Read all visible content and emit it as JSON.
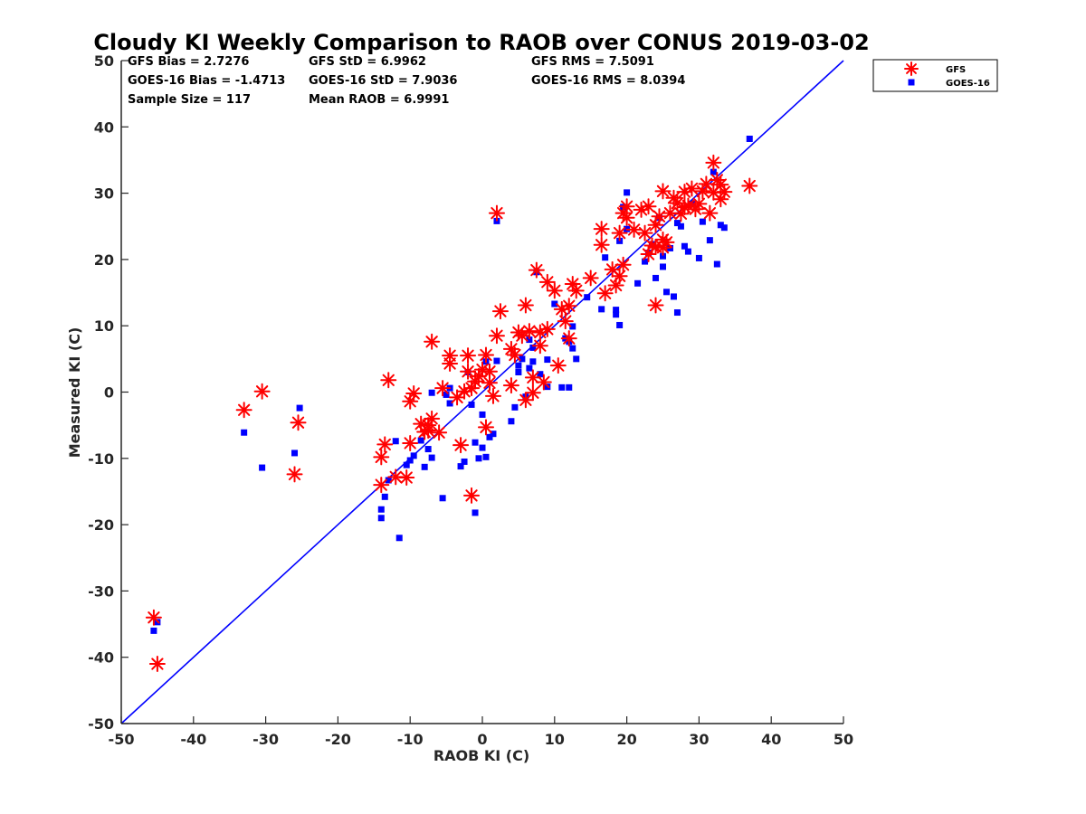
{
  "chart_data": {
    "type": "scatter",
    "title": "Cloudy KI Weekly Comparison to RAOB over CONUS 2019-03-02",
    "xlabel": "RAOB KI (C)",
    "ylabel": "Measured KI (C)",
    "xlim": [
      -50,
      50
    ],
    "ylim": [
      -50,
      50
    ],
    "xticks": [
      -50,
      -40,
      -30,
      -20,
      -10,
      0,
      10,
      20,
      30,
      40,
      50
    ],
    "yticks": [
      -50,
      -40,
      -30,
      -20,
      -10,
      0,
      10,
      20,
      30,
      40,
      50
    ],
    "grid": false,
    "legend_position": "top-right outside",
    "reference_line": {
      "name": "1:1 line",
      "from": [
        -50,
        -50
      ],
      "to": [
        50,
        50
      ],
      "color": "#0000ff"
    },
    "stats": [
      [
        "GFS Bias = 2.7276",
        "GFS StD = 6.9962",
        "GFS RMS = 7.5091"
      ],
      [
        "GOES-16 Bias = -1.4713",
        "GOES-16 StD = 7.9036",
        "GOES-16 RMS = 8.0394"
      ],
      [
        "Sample Size = 117",
        "Mean RAOB = 6.9991",
        ""
      ]
    ],
    "series": [
      {
        "name": "GFS",
        "marker": "asterisk",
        "color": "#ff0000",
        "x": [
          -45.5,
          -45,
          -33,
          -30.5,
          -26,
          -25.5,
          -14,
          -14,
          -13.5,
          -13,
          -12,
          -10.5,
          -10,
          -10,
          -9.5,
          -8.5,
          -8,
          -7.5,
          -7.5,
          -7,
          -7,
          -6,
          -5.5,
          -4.5,
          -4.5,
          -3.5,
          -3,
          -2.5,
          -2,
          -2,
          -1.5,
          -1.5,
          -1,
          -0.5,
          0,
          0.5,
          0.5,
          1,
          1,
          1.5,
          2,
          2,
          2.5,
          4,
          4,
          4.5,
          5,
          5.5,
          6,
          6,
          6.5,
          7,
          7,
          7.5,
          8,
          8,
          8.5,
          9,
          9,
          10,
          10.5,
          11,
          11.5,
          12,
          12,
          12.5,
          13,
          15,
          16.5,
          16.5,
          17,
          18,
          18.5,
          19,
          19,
          19.5,
          19.5,
          20,
          20,
          21,
          22,
          22.5,
          23,
          23,
          23.5,
          24,
          24,
          24,
          24.5,
          25,
          25,
          25,
          25.5,
          26,
          26.5,
          27,
          27.5,
          28,
          28,
          28.5,
          29,
          29.5,
          30,
          30.5,
          31,
          31.5,
          32,
          32,
          32.5,
          33,
          33,
          33.5,
          37
        ],
        "y": [
          -34,
          -41,
          -2.7,
          0.1,
          -12.4,
          -4.6,
          -9.8,
          -14,
          -7.9,
          1.8,
          -12.8,
          -12.9,
          -7.7,
          -1.4,
          -0.2,
          -4.8,
          -6,
          -5,
          -5.8,
          7.6,
          -4,
          -6.1,
          0.6,
          5.5,
          4.3,
          -0.8,
          -8,
          0.1,
          5.5,
          3.1,
          0.6,
          -15.6,
          1.6,
          2.4,
          3.4,
          5.6,
          -5.3,
          3.1,
          1.4,
          -0.6,
          27,
          8.5,
          12.2,
          6.5,
          1,
          5.6,
          9,
          8.5,
          -1.2,
          13.1,
          9.2,
          2.2,
          -0.1,
          18.4,
          7,
          9,
          1.5,
          16.6,
          9.5,
          15.3,
          4,
          12.5,
          10.7,
          8.1,
          13,
          16.3,
          15.3,
          17.2,
          22.2,
          24.6,
          14.9,
          18.5,
          16.1,
          17.5,
          24,
          19.2,
          27,
          28,
          26.3,
          24.5,
          27.5,
          24,
          28,
          20.8,
          22.1,
          13.1,
          21.9,
          25.2,
          26.5,
          23,
          30.3,
          21.8,
          22.6,
          27,
          29.3,
          28.5,
          26.9,
          30.2,
          27.9,
          28.1,
          30.7,
          27.6,
          28.4,
          30.3,
          31.4,
          27,
          34.6,
          30.1,
          32,
          29.1,
          31.3,
          30.2,
          31.1
        ]
      },
      {
        "name": "GOES-16",
        "marker": "square",
        "color": "#0000ff",
        "x": [
          -45.5,
          -45,
          -33,
          -30.5,
          -26,
          -25.3,
          -14,
          -14,
          -13.5,
          -13,
          -12,
          -11.5,
          -10.5,
          -10,
          -9.5,
          -8.5,
          -8,
          -7.5,
          -7,
          -7,
          -5.5,
          -5,
          -4.5,
          -4.5,
          -3,
          -2.5,
          -2,
          -1.5,
          -1,
          -1,
          -0.5,
          0,
          0,
          0.5,
          0.5,
          1,
          1.5,
          2,
          2,
          4,
          4.5,
          5,
          5,
          5.5,
          6,
          6.5,
          6.5,
          7,
          7,
          7.5,
          8,
          9,
          9,
          10,
          11,
          11.5,
          12,
          12,
          12.5,
          12.5,
          13,
          14.5,
          16.5,
          17,
          18.5,
          18.5,
          19,
          19,
          19.5,
          20,
          20,
          21.5,
          22.5,
          23,
          23.5,
          24,
          24.5,
          25,
          25,
          25.5,
          26,
          26.5,
          27,
          27,
          27.5,
          28,
          28.5,
          29,
          30,
          30.5,
          31.5,
          32,
          32.5,
          33,
          33.5,
          37
        ],
        "y": [
          -36,
          -34.7,
          -6.1,
          -11.4,
          -9.2,
          -2.4,
          -17.7,
          -19,
          -15.8,
          -13.3,
          -7.4,
          -22,
          -11,
          -10.3,
          -9.6,
          -7.3,
          -11.3,
          -8.6,
          -0.1,
          -9.9,
          -16,
          -0.4,
          -1.7,
          0.6,
          -11.2,
          -10.5,
          3,
          -1.9,
          -18.2,
          -7.6,
          -10,
          -8.4,
          -3.4,
          -9.8,
          4.6,
          -6.8,
          -6.3,
          25.8,
          4.7,
          -4.4,
          -2.3,
          4,
          3,
          5,
          -0.7,
          7.9,
          3.6,
          4.6,
          6.7,
          18.1,
          2.7,
          0.8,
          4.9,
          13.3,
          0.7,
          8.1,
          0.7,
          7.6,
          9.9,
          6.6,
          5,
          14.3,
          12.5,
          20.3,
          12.4,
          11.7,
          10.1,
          22.8,
          27.9,
          30.1,
          24.6,
          16.4,
          19.7,
          21,
          22.3,
          17.2,
          26.3,
          18.9,
          20.5,
          15.1,
          21.7,
          14.4,
          12,
          25.5,
          25,
          22,
          21.2,
          28.4,
          20.2,
          25.7,
          22.9,
          33.2,
          19.3,
          25.2,
          24.8,
          38.2
        ]
      }
    ]
  }
}
